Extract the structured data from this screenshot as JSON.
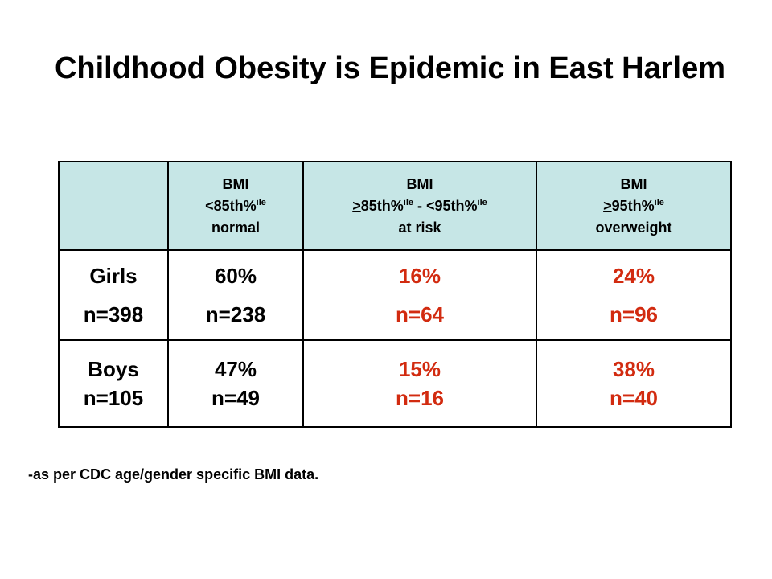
{
  "title": "Childhood Obesity is Epidemic in East Harlem",
  "columns": [
    {
      "line1": "BMI",
      "rel": "<",
      "pct": "85th%",
      "sup": "ile",
      "desc": "normal"
    },
    {
      "line1": "BMI",
      "rel_a": ">",
      "pct_a": "85th%",
      "sup_a": "ile",
      "sep": " - ",
      "rel_b": "<",
      "pct_b": "95th%",
      "sup_b": "ile",
      "desc": "at risk"
    },
    {
      "line1": "BMI",
      "rel": ">",
      "pct": "95th%",
      "sup": "ile",
      "desc": "overweight"
    }
  ],
  "rows": [
    {
      "label": "Girls",
      "n": "n=398",
      "cells": [
        {
          "pct": "60%",
          "n": "n=238",
          "highlight": false
        },
        {
          "pct": "16%",
          "n": "n=64",
          "highlight": true
        },
        {
          "pct": "24%",
          "n": "n=96",
          "highlight": true
        }
      ]
    },
    {
      "label": "Boys",
      "n": "n=105",
      "cells": [
        {
          "pct": "47%",
          "n": "n=49",
          "highlight": false
        },
        {
          "pct": "15%",
          "n": "n=16",
          "highlight": true
        },
        {
          "pct": "38%",
          "n": "n=40",
          "highlight": true
        }
      ]
    }
  ],
  "footnote": "-as per CDC age/gender specific BMI data.",
  "colors": {
    "header_bg": "#c6e6e6",
    "highlight_text": "#d22b10"
  }
}
